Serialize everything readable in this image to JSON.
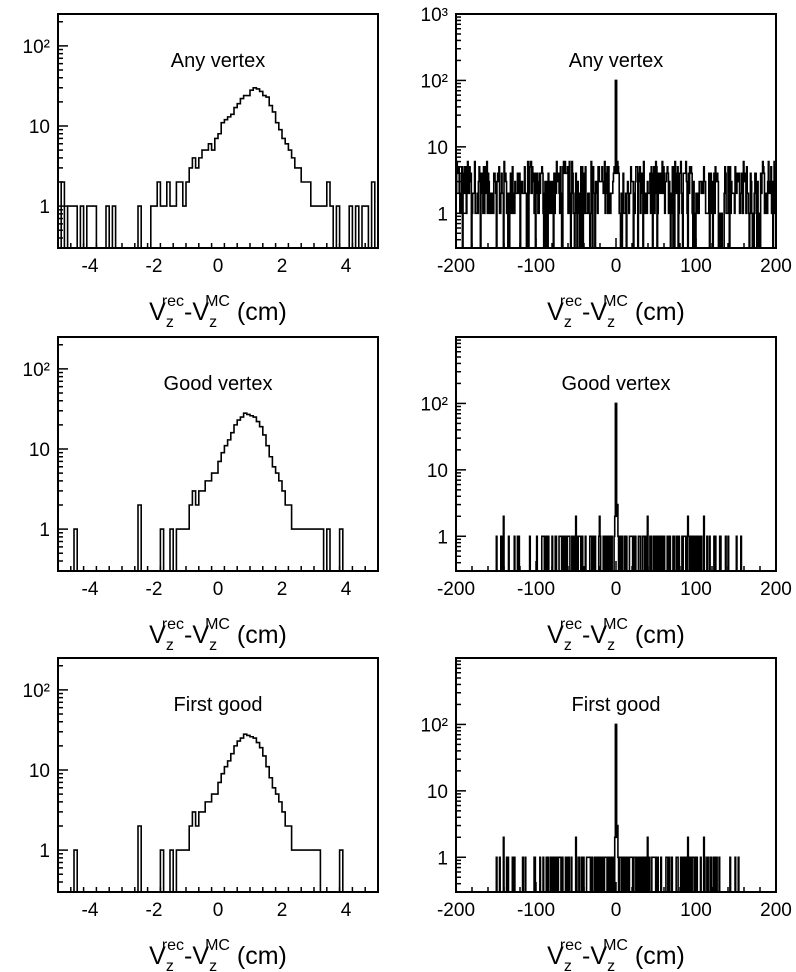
{
  "chart_data": [
    {
      "panel": "top-left",
      "type": "histogram",
      "title": "Any vertex",
      "xlabel": "V_z^rec - V_z^MC (cm)",
      "xlim": [
        -5,
        5
      ],
      "ylim": [
        0.3,
        250
      ],
      "ylog": true,
      "xticks": [
        -4,
        -2,
        0,
        2,
        4
      ],
      "xtick_labels": [
        "-4",
        "-2",
        "0",
        "2",
        "4"
      ],
      "yticks": [
        1,
        10,
        100
      ],
      "ytick_labels": [
        "1",
        "10",
        "10²"
      ],
      "xlabel_parts": {
        "v": "V",
        "sub": "z",
        "rec": "rec",
        "mc": "MC",
        "dash": "-",
        "unit": " (cm)"
      },
      "bins": {
        "start": -5,
        "width": 0.1,
        "counts": [
          0,
          2,
          0,
          1,
          1,
          1,
          0,
          1,
          0,
          1,
          1,
          1,
          0,
          0,
          0,
          1,
          0,
          1,
          0,
          0,
          0,
          0,
          0,
          0,
          0,
          1,
          0,
          0,
          0,
          1,
          1,
          2,
          1,
          1,
          2,
          1,
          1,
          2,
          2,
          1,
          2,
          3,
          4,
          3,
          4,
          5,
          5,
          6,
          5,
          7,
          8,
          11,
          12,
          13,
          14,
          17,
          19,
          22,
          24,
          24,
          28,
          30,
          29,
          27,
          24,
          23,
          18,
          15,
          11,
          9,
          7,
          6,
          5,
          4,
          3,
          3,
          2,
          2,
          2,
          1,
          1,
          1,
          1,
          1,
          2,
          1,
          0,
          1,
          0,
          0,
          0,
          1,
          0,
          1,
          0,
          1,
          1,
          0,
          2,
          0,
          0,
          1,
          2
        ]
      }
    },
    {
      "panel": "top-right",
      "type": "histogram",
      "title": "Any vertex",
      "xlabel": "V_z^rec - V_z^MC (cm)",
      "xlim": [
        -200,
        200
      ],
      "ylim": [
        0.3,
        1000
      ],
      "ylog": true,
      "xticks": [
        -200,
        -100,
        0,
        100,
        200
      ],
      "xtick_labels": [
        "-200",
        "-100",
        "0",
        "100",
        "200"
      ],
      "yticks": [
        1,
        10,
        100,
        1000
      ],
      "ytick_labels": [
        "1",
        "10",
        "10²",
        "10³"
      ],
      "xlabel_parts": {
        "v": "V",
        "sub": "z",
        "rec": "rec",
        "mc": "MC",
        "dash": "-",
        "unit": " (cm)"
      },
      "noise": {
        "range": [
          -200,
          200
        ],
        "bin_width": 0.8,
        "level_min": 1,
        "level_max": 6
      },
      "peak": {
        "x": 0,
        "value": 100,
        "shoulder": [
          4,
          6,
          4
        ]
      }
    },
    {
      "panel": "middle-left",
      "type": "histogram",
      "title": "Good vertex",
      "xlabel": "V_z^rec - V_z^MC (cm)",
      "xlim": [
        -5,
        5
      ],
      "ylim": [
        0.3,
        250
      ],
      "ylog": true,
      "xticks": [
        -4,
        -2,
        0,
        2,
        4
      ],
      "xtick_labels": [
        "-4",
        "-2",
        "0",
        "2",
        "4"
      ],
      "yticks": [
        1,
        10,
        100
      ],
      "ytick_labels": [
        "1",
        "10",
        "10²"
      ],
      "xlabel_parts": {
        "v": "V",
        "sub": "z",
        "rec": "rec",
        "mc": "MC",
        "dash": "-",
        "unit": " (cm)"
      },
      "bins": {
        "start": -5,
        "width": 0.1,
        "counts": [
          0,
          0,
          0,
          0,
          0,
          1,
          0,
          0,
          0,
          0,
          0,
          0,
          0,
          0,
          0,
          0,
          0,
          0,
          0,
          0,
          0,
          0,
          0,
          0,
          0,
          2,
          0,
          0,
          0,
          0,
          0,
          0,
          1,
          0,
          0,
          1,
          0,
          1,
          1,
          1,
          1,
          2,
          3,
          2,
          3,
          3,
          4,
          4,
          5,
          5,
          7,
          9,
          11,
          13,
          16,
          20,
          23,
          25,
          28,
          27,
          26,
          25,
          22,
          19,
          15,
          11,
          8,
          6,
          5,
          4,
          3,
          2,
          2,
          1,
          1,
          1,
          1,
          1,
          1,
          1,
          1,
          1,
          1,
          0,
          1,
          0,
          0,
          0,
          1,
          0,
          0,
          0,
          0,
          0,
          0,
          0,
          0,
          0,
          0,
          0,
          1
        ]
      }
    },
    {
      "panel": "middle-right",
      "type": "histogram",
      "title": "Good vertex",
      "xlabel": "V_z^rec - V_z^MC (cm)",
      "xlim": [
        -200,
        200
      ],
      "ylim": [
        0.3,
        1000
      ],
      "ylog": true,
      "xticks": [
        -200,
        -100,
        0,
        100,
        200
      ],
      "xtick_labels": [
        "-200",
        "-100",
        "0",
        "100",
        "200"
      ],
      "yticks": [
        1,
        10,
        100
      ],
      "ytick_labels": [
        "1",
        "10",
        "10²"
      ],
      "xlabel_parts": {
        "v": "V",
        "sub": "z",
        "rec": "rec",
        "mc": "MC",
        "dash": "-",
        "unit": " (cm)"
      },
      "spikes": {
        "range": [
          -150,
          160
        ],
        "value": 1,
        "extra": [
          [
            -140,
            2
          ],
          [
            -50,
            2
          ],
          [
            -20,
            2
          ],
          [
            40,
            2
          ],
          [
            90,
            2
          ],
          [
            110,
            2
          ]
        ]
      },
      "peak": {
        "x": 0,
        "value": 100,
        "shoulder": [
          2,
          3,
          2
        ]
      }
    },
    {
      "panel": "bottom-left",
      "type": "histogram",
      "title": "First good",
      "xlabel": "V_z^rec - V_z^MC (cm)",
      "xlim": [
        -5,
        5
      ],
      "ylim": [
        0.3,
        250
      ],
      "ylog": true,
      "xticks": [
        -4,
        -2,
        0,
        2,
        4
      ],
      "xtick_labels": [
        "-4",
        "-2",
        "0",
        "2",
        "4"
      ],
      "yticks": [
        1,
        10,
        100
      ],
      "ytick_labels": [
        "1",
        "10",
        "10²"
      ],
      "xlabel_parts": {
        "v": "V",
        "sub": "z",
        "rec": "rec",
        "mc": "MC",
        "dash": "-",
        "unit": " (cm)"
      },
      "bins": {
        "start": -5,
        "width": 0.1,
        "counts": [
          0,
          0,
          0,
          0,
          0,
          1,
          0,
          0,
          0,
          0,
          0,
          0,
          0,
          0,
          0,
          0,
          0,
          0,
          0,
          0,
          0,
          0,
          0,
          0,
          0,
          2,
          0,
          0,
          0,
          0,
          0,
          0,
          1,
          0,
          0,
          1,
          0,
          1,
          1,
          1,
          1,
          2,
          3,
          2,
          3,
          3,
          4,
          4,
          5,
          5,
          7,
          9,
          11,
          13,
          16,
          20,
          23,
          25,
          28,
          27,
          26,
          25,
          22,
          19,
          15,
          11,
          8,
          6,
          5,
          4,
          3,
          2,
          2,
          1,
          1,
          1,
          1,
          1,
          1,
          1,
          1,
          1,
          0,
          0,
          0,
          0,
          0,
          0,
          1,
          0,
          0,
          0,
          0,
          0,
          0,
          0,
          0,
          0,
          0,
          0,
          0
        ]
      }
    },
    {
      "panel": "bottom-right",
      "type": "histogram",
      "title": "First good",
      "xlabel": "V_z^rec - V_z^MC (cm)",
      "xlim": [
        -200,
        200
      ],
      "ylim": [
        0.3,
        1000
      ],
      "ylog": true,
      "xticks": [
        -200,
        -100,
        0,
        100,
        200
      ],
      "xtick_labels": [
        "-200",
        "-100",
        "0",
        "100",
        "200"
      ],
      "yticks": [
        1,
        10,
        100
      ],
      "ytick_labels": [
        "1",
        "10",
        "10²"
      ],
      "xlabel_parts": {
        "v": "V",
        "sub": "z",
        "rec": "rec",
        "mc": "MC",
        "dash": "-",
        "unit": " (cm)"
      },
      "spikes": {
        "range": [
          -150,
          160
        ],
        "value": 1,
        "extra": [
          [
            -140,
            2
          ],
          [
            -50,
            2
          ],
          [
            40,
            2
          ],
          [
            90,
            2
          ],
          [
            110,
            2
          ]
        ]
      },
      "peak": {
        "x": 0,
        "value": 100,
        "shoulder": [
          2,
          3,
          2
        ]
      }
    }
  ]
}
